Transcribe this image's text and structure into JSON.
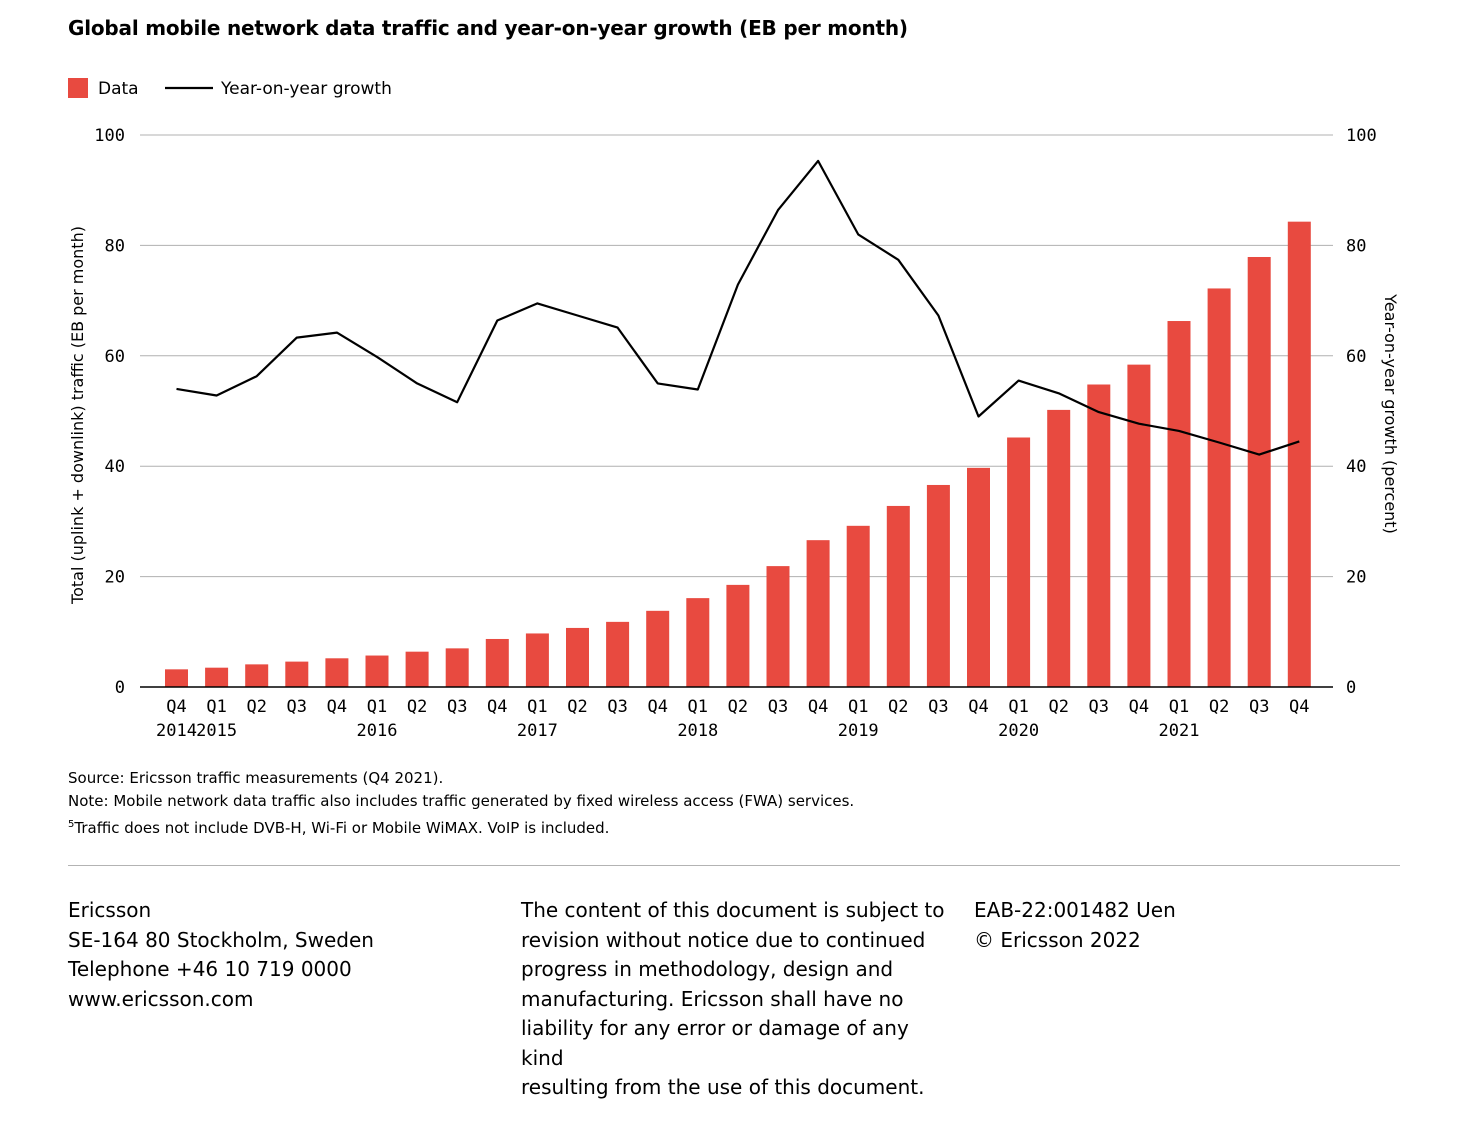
{
  "chart_data": {
    "type": "bar",
    "title": "Global mobile network data traffic and year-on-year growth (EB per month)",
    "ylabel": "Total (uplink + downlink) traffic (EB per month)",
    "y2label": "Year-on-year growth (percent)",
    "ylim": [
      0,
      100
    ],
    "y2lim": [
      0,
      100
    ],
    "yticks": [
      "0",
      "20",
      "40",
      "60",
      "80",
      "100"
    ],
    "y2ticks": [
      "0",
      "20",
      "40",
      "60",
      "80",
      "100"
    ],
    "grid": true,
    "legend": [
      {
        "name": "Data",
        "kind": "bar",
        "color": "#e84a40"
      },
      {
        "name": "Year-on-year growth",
        "kind": "line",
        "color": "#000000"
      }
    ],
    "legend_placement": "top-left",
    "categories": [
      "Q4",
      "Q1",
      "Q2",
      "Q3",
      "Q4",
      "Q1",
      "Q2",
      "Q3",
      "Q4",
      "Q1",
      "Q2",
      "Q3",
      "Q4",
      "Q1",
      "Q2",
      "Q3",
      "Q4",
      "Q1",
      "Q2",
      "Q3",
      "Q4",
      "Q1",
      "Q2",
      "Q3",
      "Q4",
      "Q1",
      "Q2",
      "Q3",
      "Q4"
    ],
    "year_labels": [
      {
        "index": 0,
        "label": "2014"
      },
      {
        "index": 1,
        "label": "2015"
      },
      {
        "index": 5,
        "label": "2016"
      },
      {
        "index": 9,
        "label": "2017"
      },
      {
        "index": 13,
        "label": "2018"
      },
      {
        "index": 17,
        "label": "2019"
      },
      {
        "index": 21,
        "label": "2020"
      },
      {
        "index": 25,
        "label": "2021"
      }
    ],
    "series": [
      {
        "name": "Data",
        "type": "bar",
        "axis": "left",
        "color": "#e84a40",
        "values": [
          3.2,
          3.5,
          4.1,
          4.6,
          5.2,
          5.7,
          6.4,
          7.0,
          8.7,
          9.7,
          10.7,
          11.8,
          13.8,
          16.1,
          18.5,
          21.9,
          26.6,
          29.2,
          32.8,
          36.6,
          39.7,
          45.2,
          50.2,
          54.8,
          58.4,
          66.3,
          72.2,
          77.9,
          84.3
        ]
      },
      {
        "name": "Year-on-year growth",
        "type": "line",
        "axis": "right",
        "color": "#000000",
        "values": [
          54,
          52.8,
          56.3,
          63.3,
          64.2,
          59.8,
          55,
          51.6,
          66.4,
          69.5,
          67.3,
          65.1,
          55,
          53.9,
          72.9,
          86.4,
          95.3,
          82,
          77.4,
          67.3,
          49,
          55.5,
          53.2,
          49.8,
          47.7,
          46.4,
          44.3,
          42.1,
          44.5
        ]
      }
    ]
  },
  "notes": {
    "source": "Source: Ericsson traffic measurements (Q4 2021).",
    "note": "Note: Mobile network data traffic also includes traffic generated by fixed wireless access (FWA) services.",
    "footnote_mark": "5",
    "footnote": "Traffic does not include DVB-H, Wi-Fi or Mobile WiMAX. VoIP is included."
  },
  "footer": {
    "company": "Ericsson",
    "address": "SE-164 80 Stockholm, Sweden",
    "telephone": "Telephone +46 10 719 0000",
    "website": "www.ericsson.com",
    "disclaimer_lines": [
      "The content of this document is subject to",
      "revision without notice due to continued",
      "progress in methodology, design and",
      "manufacturing. Ericsson shall have no",
      "liability for any error or damage of any kind",
      "resulting from the use of this document."
    ],
    "doc_id": "EAB-22:001482 Uen",
    "copyright": "© Ericsson 2022"
  }
}
